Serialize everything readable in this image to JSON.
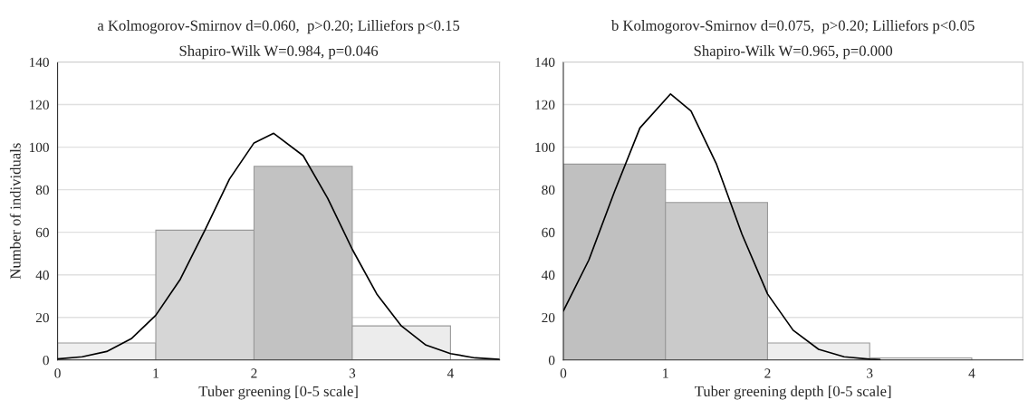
{
  "chart_data": [
    {
      "type": "histogram",
      "title": "a Kolmogorov-Smirnov d=0.060,  p>0.20; Lilliefors p<0.15",
      "subtitle": "Shapiro-Wilk W=0.984, p=0.046",
      "xlabel": "Tuber greening [0-5 scale]",
      "ylabel": "Number of individuals",
      "bins": [
        0,
        1,
        2,
        3,
        4
      ],
      "values": [
        8,
        61,
        91,
        16
      ],
      "colors": [
        "#efefef",
        "#d6d6d6",
        "#c2c2c2",
        "#ececec"
      ],
      "series": [
        {
          "type": "line",
          "color": "#000000",
          "x": [
            0,
            0.25,
            0.5,
            0.75,
            1.0,
            1.25,
            1.5,
            1.75,
            2.0,
            2.2,
            2.5,
            2.75,
            3.0,
            3.25,
            3.5,
            3.75,
            4.0,
            4.25,
            4.5
          ],
          "values": [
            0.5,
            1.5,
            4,
            10,
            21,
            38,
            61,
            85,
            102,
            106.5,
            96,
            76,
            52,
            31,
            16,
            7,
            3,
            1,
            0.3
          ]
        }
      ],
      "xlim": [
        0,
        4.5
      ],
      "xticks": [
        0,
        1,
        2,
        3,
        4
      ],
      "ylim": [
        0,
        140
      ],
      "yticks": [
        0,
        20,
        40,
        60,
        80,
        100,
        120,
        140
      ],
      "grid": "y"
    },
    {
      "type": "histogram",
      "title": "b Kolmogorov-Smirnov d=0.075,  p>0.20; Lilliefors p<0.05",
      "subtitle": "Shapiro-Wilk W=0.965, p=0.000",
      "xlabel": "Tuber greening depth [0-5 scale]",
      "bins": [
        0,
        1,
        2,
        3,
        4
      ],
      "values": [
        92,
        74,
        8,
        1
      ],
      "colors": [
        "#c0c0c0",
        "#cacaca",
        "#eeeeee",
        "#f2f2f2"
      ],
      "series": [
        {
          "type": "line",
          "color": "#000000",
          "x": [
            0,
            0.25,
            0.5,
            0.75,
            1.05,
            1.25,
            1.5,
            1.75,
            2.0,
            2.25,
            2.5,
            2.75,
            3.0,
            3.1
          ],
          "values": [
            23,
            47,
            79,
            109,
            125,
            117,
            92,
            59,
            31,
            14,
            5,
            1.5,
            0.4,
            0.2
          ]
        }
      ],
      "xlim": [
        0,
        4.5
      ],
      "xticks": [
        0,
        1,
        2,
        3,
        4
      ],
      "ylim": [
        0,
        140
      ],
      "yticks": [
        0,
        20,
        40,
        60,
        80,
        100,
        120,
        140
      ],
      "grid": "y"
    }
  ]
}
